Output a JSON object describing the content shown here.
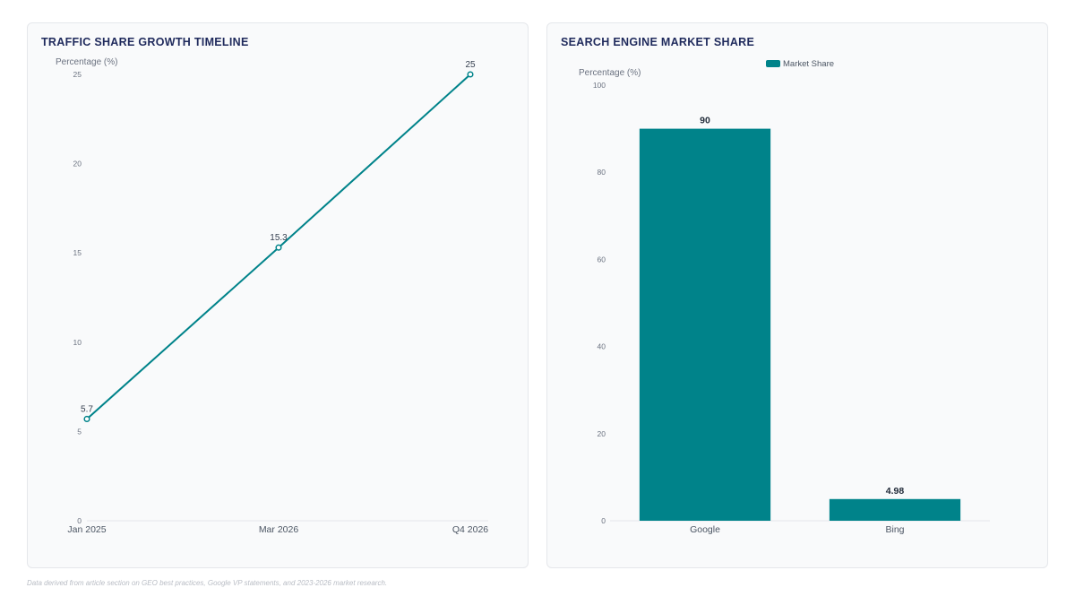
{
  "line_panel": {
    "title": "TRAFFIC SHARE GROWTH TIMELINE"
  },
  "bar_panel": {
    "title": "SEARCH ENGINE MARKET SHARE"
  },
  "footer": {
    "note": "Data derived from article section on GEO best practices, Google VP statements, and 2023-2026 market research."
  },
  "colors": {
    "accent": "#00838a",
    "title": "#1f2a5c",
    "grid": "#e5e7eb"
  },
  "chart_data": [
    {
      "type": "line",
      "title": "TRAFFIC SHARE GROWTH TIMELINE",
      "ylabel": "Percentage (%)",
      "xlabel": "",
      "categories": [
        "Jan 2025",
        "Mar 2026",
        "Q4 2026"
      ],
      "series": [
        {
          "values": [
            5.7,
            15.3,
            25
          ]
        }
      ],
      "ylim": [
        0,
        25
      ],
      "yticks": [
        0,
        5,
        10,
        15,
        20,
        25
      ],
      "grid": false
    },
    {
      "type": "bar",
      "title": "SEARCH ENGINE MARKET SHARE",
      "ylabel": "Percentage (%)",
      "xlabel": "",
      "categories": [
        "Google",
        "Bing"
      ],
      "series": [
        {
          "name": "Market Share",
          "values": [
            90,
            4.98
          ]
        }
      ],
      "ylim": [
        0,
        100
      ],
      "yticks": [
        0,
        20,
        40,
        60,
        80,
        100
      ],
      "legend": "top-center",
      "grid": false
    }
  ]
}
